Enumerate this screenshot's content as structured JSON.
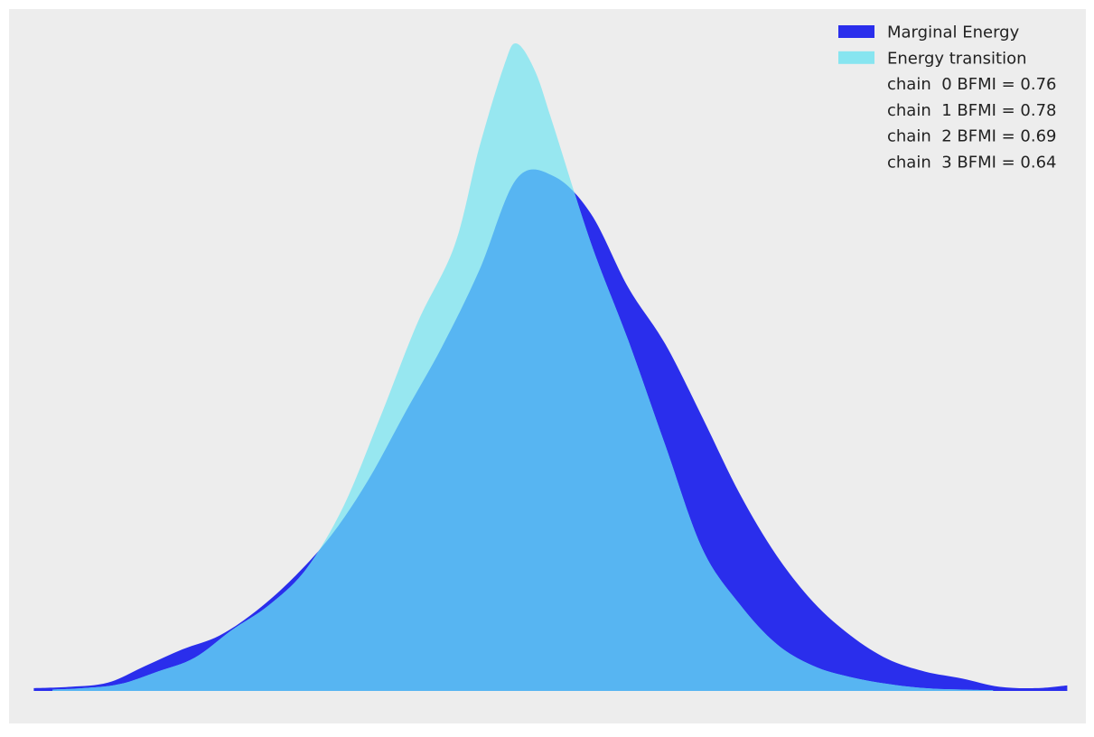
{
  "chart_data": {
    "type": "area",
    "title": "",
    "xlabel": "",
    "ylabel": "",
    "grid": false,
    "axes_visible": false,
    "legend_position": "top-right",
    "background_color": "#ededed",
    "xlim": [
      -4.1,
      4.6
    ],
    "ylim": [
      0,
      0.47
    ],
    "series": [
      {
        "name": "Marginal Energy",
        "color": "#2a2eec",
        "opacity": 1,
        "x": [
          -3.9,
          -3.6,
          -3.3,
          -3.0,
          -2.7,
          -2.4,
          -2.1,
          -1.8,
          -1.5,
          -1.2,
          -0.9,
          -0.6,
          -0.3,
          0.0,
          0.3,
          0.6,
          0.9,
          1.2,
          1.5,
          1.8,
          2.1,
          2.4,
          2.7,
          3.0,
          3.3,
          3.6,
          3.9,
          4.2,
          4.45
        ],
        "y": [
          0.002,
          0.003,
          0.006,
          0.018,
          0.03,
          0.04,
          0.058,
          0.082,
          0.112,
          0.152,
          0.201,
          0.249,
          0.304,
          0.37,
          0.372,
          0.345,
          0.292,
          0.251,
          0.198,
          0.143,
          0.098,
          0.064,
          0.04,
          0.023,
          0.014,
          0.009,
          0.003,
          0.002,
          0.004
        ]
      },
      {
        "name": "Energy transition",
        "color": "#87e5f0",
        "opacity": 0.85,
        "x": [
          -3.75,
          -3.5,
          -3.2,
          -2.9,
          -2.6,
          -2.3,
          -2.0,
          -1.7,
          -1.4,
          -1.1,
          -0.8,
          -0.5,
          -0.3,
          -0.1,
          0.0,
          0.15,
          0.3,
          0.6,
          0.9,
          1.2,
          1.5,
          1.8,
          2.1,
          2.4,
          2.7,
          3.0,
          3.3,
          3.6,
          3.85
        ],
        "y": [
          0.001,
          0.002,
          0.005,
          0.014,
          0.024,
          0.044,
          0.062,
          0.088,
          0.133,
          0.198,
          0.266,
          0.322,
          0.393,
          0.452,
          0.468,
          0.448,
          0.408,
          0.324,
          0.254,
          0.178,
          0.103,
          0.063,
          0.034,
          0.018,
          0.01,
          0.005,
          0.002,
          0.001,
          0.0005
        ]
      }
    ],
    "overlap_color": "#57b5f2",
    "legend": [
      {
        "label": "Marginal Energy",
        "swatch": "#2a2eec"
      },
      {
        "label": "Energy transition",
        "swatch": "#87e5f0"
      },
      {
        "label": "chain  0 BFMI = 0.76",
        "swatch": null
      },
      {
        "label": "chain  1 BFMI = 0.78",
        "swatch": null
      },
      {
        "label": "chain  2 BFMI = 0.69",
        "swatch": null
      },
      {
        "label": "chain  3 BFMI = 0.64",
        "swatch": null
      }
    ],
    "annotations": [
      {
        "chain": 0,
        "bfmi": 0.76
      },
      {
        "chain": 1,
        "bfmi": 0.78
      },
      {
        "chain": 2,
        "bfmi": 0.69
      },
      {
        "chain": 3,
        "bfmi": 0.64
      }
    ]
  }
}
